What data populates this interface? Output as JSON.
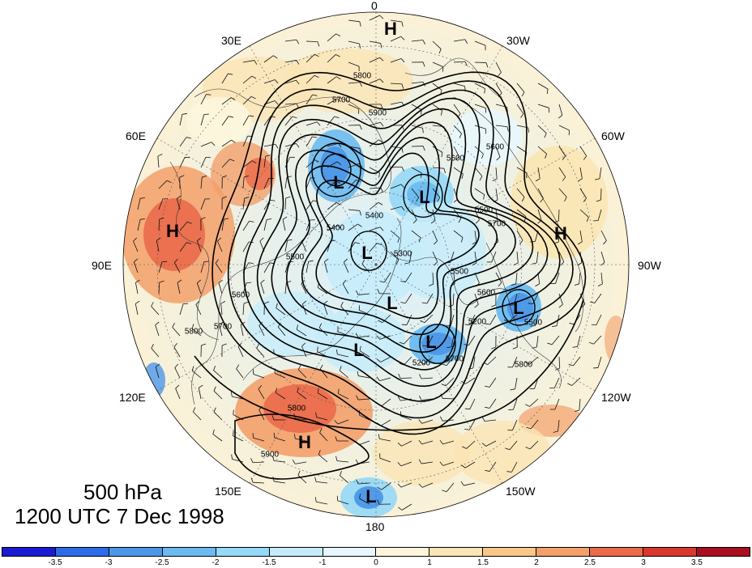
{
  "map": {
    "projection": "north-polar-stereographic",
    "longitude_labels": [
      "0",
      "30W",
      "60W",
      "90W",
      "120W",
      "150W",
      "180",
      "150E",
      "120E",
      "90E",
      "60E",
      "30E"
    ],
    "highs": [
      "H",
      "H",
      "H",
      "H"
    ],
    "lows": [
      "L",
      "L",
      "L",
      "L",
      "L",
      "L",
      "L",
      "L"
    ],
    "contour_values": [
      "5800",
      "5700",
      "5600",
      "5500",
      "5400",
      "5300",
      "5200",
      "5900",
      "5600",
      "5700",
      "5800",
      "5500",
      "5400",
      "5500",
      "5600",
      "5700",
      "5800",
      "5200",
      "5700",
      "5800",
      "5900",
      "5600",
      "5500"
    ],
    "colors": {
      "land_outline": "#000000",
      "contour": "#000000",
      "anomaly_positive": "#e9604a",
      "anomaly_negative": "#4d97e8"
    }
  },
  "title": {
    "level": "500 hPa",
    "time": "1200 UTC 7 Dec 1998"
  },
  "colorbar": {
    "colors": [
      "#1a1ad0",
      "#2e6be6",
      "#4d97e8",
      "#6cbaf0",
      "#95d8f7",
      "#c6ecfb",
      "#e8f7fd",
      "#fdf6dc",
      "#fbe5b4",
      "#f8c88a",
      "#f3a06a",
      "#ea6a4b",
      "#d8382e",
      "#a81020"
    ],
    "tick_labels": [
      "-3.5",
      "-3",
      "-2.5",
      "-2",
      "-1.5",
      "-1",
      "0",
      "1",
      "1.5",
      "2",
      "2.5",
      "3",
      "3.5"
    ]
  }
}
